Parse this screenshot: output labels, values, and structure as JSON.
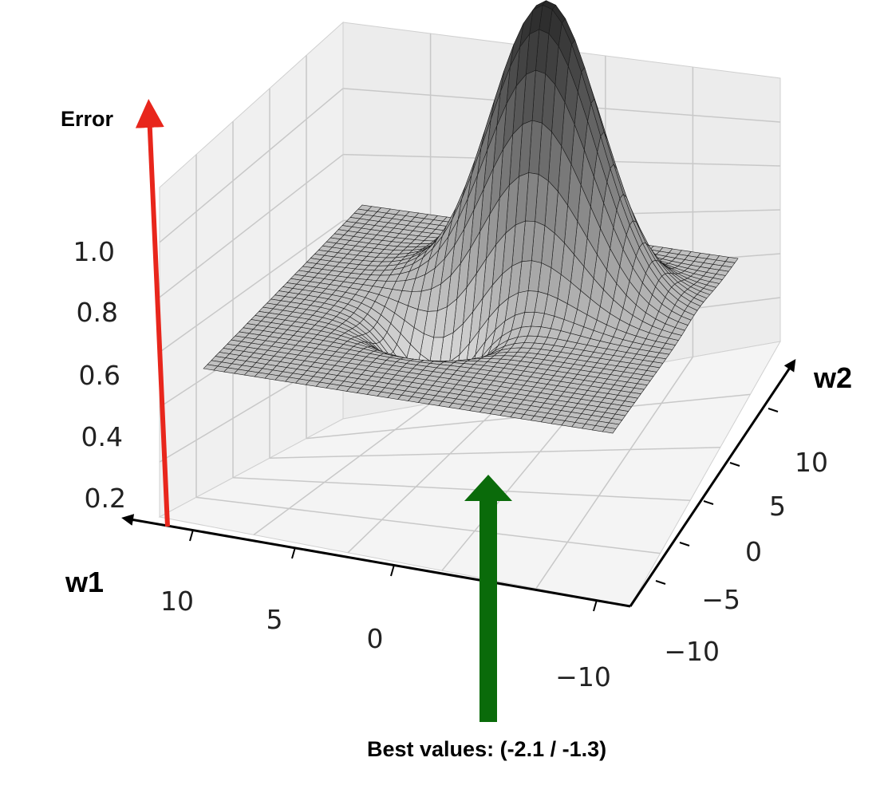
{
  "chart_data": {
    "type": "surface",
    "axes": {
      "z": {
        "label": "Error",
        "ticks": [
          "0.2",
          "0.4",
          "0.6",
          "0.8",
          "1.0"
        ]
      },
      "x": {
        "label": "w1",
        "ticks": [
          "10",
          "5",
          "0",
          "−10"
        ]
      },
      "y": {
        "label": "w2",
        "ticks": [
          "10",
          "5",
          "0",
          "−5",
          "−10"
        ]
      }
    },
    "surface": {
      "xlim": [
        -12,
        12
      ],
      "ylim": [
        -12,
        12
      ],
      "peak": {
        "w1": 2.5,
        "w2": 4.5,
        "value": 1.2
      },
      "minimum": {
        "w1": -2.1,
        "w2": -1.3,
        "value": 0.3
      },
      "baseline": 0.5
    },
    "annotations": {
      "best": "Best values: (-2.1 / -1.3)"
    },
    "colors": {
      "error_arrow": "#e8261c",
      "best_arrow": "#0a6b0a",
      "surface_dark": "#1e1e1e",
      "surface_light": "#f2f2f2"
    },
    "grid": true
  }
}
